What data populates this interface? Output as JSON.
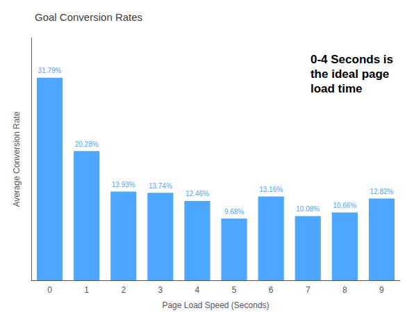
{
  "chart_data": {
    "type": "bar",
    "title": "Goal Conversion Rates",
    "xlabel": "Page Load Speed (Seconds)",
    "ylabel": "Average Conversion Rate",
    "categories": [
      0,
      1,
      2,
      3,
      4,
      5,
      6,
      7,
      8,
      9
    ],
    "values": [
      31.79,
      20.28,
      13.93,
      13.74,
      12.46,
      9.68,
      13.16,
      10.08,
      10.66,
      12.82
    ],
    "value_labels": [
      "31.79%",
      "20.28%",
      "13.93%",
      "13.74%",
      "12.46%",
      "9.68%",
      "13.16%",
      "10.08%",
      "10.66%",
      "12.82%"
    ],
    "data_labels": true,
    "color": "#4DA6FF",
    "ylim": [
      0,
      38
    ],
    "tick_labels": "x",
    "grid": false,
    "annotation": "0-4 Seconds is\nthe ideal page\nload time"
  }
}
